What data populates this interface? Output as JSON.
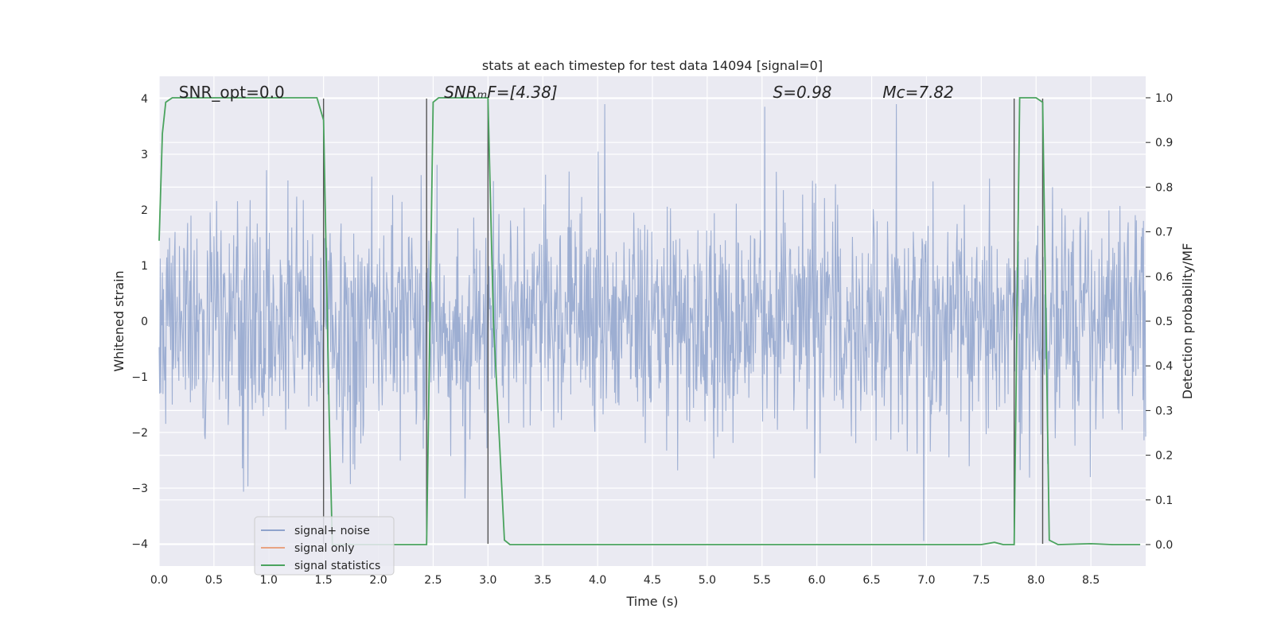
{
  "chart_data": {
    "type": "line",
    "title": "stats at each timestep for test data 14094 [signal=0]",
    "xlabel": "Time (s)",
    "ylabel": "Whitened strain",
    "y2label": "Detection probability/MF",
    "xlim": [
      0,
      9.0
    ],
    "ylim": [
      -4.4,
      4.4
    ],
    "y2lim": [
      -0.048,
      1.048
    ],
    "xticks": [
      "0.0",
      "0.5",
      "1.0",
      "1.5",
      "2.0",
      "2.5",
      "3.0",
      "3.5",
      "4.0",
      "4.5",
      "5.0",
      "5.5",
      "6.0",
      "6.5",
      "7.0",
      "7.5",
      "8.0",
      "8.5"
    ],
    "yticks": [
      "−4",
      "−3",
      "−2",
      "−1",
      "0",
      "1",
      "2",
      "3",
      "4"
    ],
    "y2ticks": [
      "0.0",
      "0.1",
      "0.2",
      "0.3",
      "0.4",
      "0.5",
      "0.6",
      "0.7",
      "0.8",
      "0.9",
      "1.0"
    ],
    "grid": true,
    "legend_position": "lower-left",
    "annotations": [
      {
        "id": "snr-opt",
        "x": 0.18,
        "text": "SNR_opt=0.0",
        "italic": false
      },
      {
        "id": "snr-mf",
        "x": 2.6,
        "text": "SNRₘF=[4.38]",
        "italic": true
      },
      {
        "id": "s-value",
        "x": 5.6,
        "text": "S=0.98",
        "italic": true
      },
      {
        "id": "mc-value",
        "x": 6.6,
        "text": "Mᴄ=7.82",
        "italic": true
      }
    ],
    "vertical_markers_x": [
      1.5,
      2.44,
      3.0,
      7.8,
      8.06
    ],
    "series": [
      {
        "name": "signal+ noise",
        "color": "#8fa3cc",
        "description": "whitened strain noise, roughly gaussian with |values| mostly < 2.6 and occasional spikes up to ~3.9",
        "sample_rate_hz": 200,
        "seed": 14094
      },
      {
        "name": "signal only",
        "color": "#e8a382",
        "values": []
      },
      {
        "name": "signal statistics",
        "color": "#4aa35e",
        "axis": "right",
        "x": [
          0.0,
          0.03,
          0.06,
          0.12,
          1.44,
          1.5,
          1.55,
          1.58,
          1.7,
          2.0,
          2.2,
          2.4,
          2.44,
          2.5,
          2.55,
          2.6,
          3.0,
          3.05,
          3.15,
          3.2,
          4.0,
          5.0,
          6.0,
          7.0,
          7.4,
          7.5,
          7.62,
          7.7,
          7.8,
          7.85,
          7.9,
          8.0,
          8.06,
          8.12,
          8.2,
          8.5,
          8.7,
          8.95
        ],
        "y": [
          0.68,
          0.92,
          0.99,
          1.0,
          1.0,
          0.95,
          0.3,
          0.0,
          0.0,
          0.0,
          0.0,
          0.0,
          0.0,
          0.99,
          1.0,
          1.0,
          1.0,
          0.5,
          0.01,
          0.0,
          0.0,
          0.0,
          0.0,
          0.0,
          0.0,
          0.0,
          0.005,
          0.0,
          0.0,
          1.0,
          1.0,
          1.0,
          0.99,
          0.01,
          0.0,
          0.002,
          0.0,
          0.0
        ]
      }
    ]
  }
}
